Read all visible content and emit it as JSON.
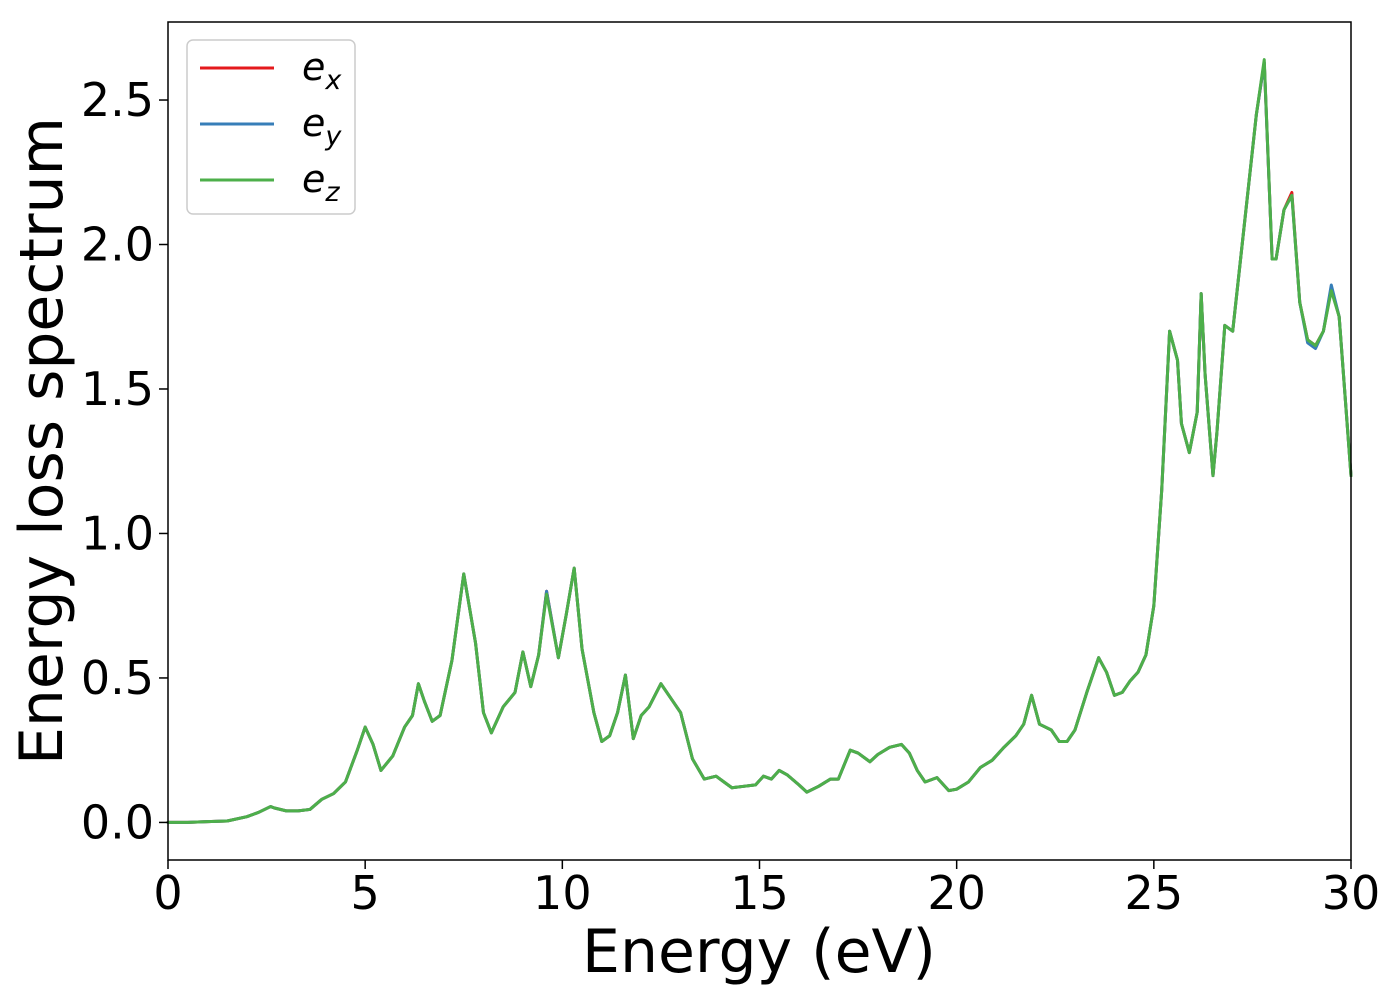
{
  "chart_data": {
    "type": "line",
    "title": "",
    "xlabel": "Energy (eV)",
    "ylabel": "Energy loss spectrum",
    "xlim": [
      0,
      30
    ],
    "ylim": [
      -0.13,
      2.77
    ],
    "xticks": [
      "0",
      "5",
      "10",
      "15",
      "20",
      "25",
      "30"
    ],
    "yticks": [
      "0.0",
      "0.5",
      "1.0",
      "1.5",
      "2.0",
      "2.5"
    ],
    "grid": false,
    "legend_position": "top-left",
    "legend": [
      {
        "base": "e",
        "sub": "x",
        "color": "#e41a1c"
      },
      {
        "base": "e",
        "sub": "y",
        "color": "#377eb8"
      },
      {
        "base": "e",
        "sub": "z",
        "color": "#4daf4a"
      }
    ],
    "x": [
      0,
      0.5,
      1.0,
      1.5,
      2.0,
      2.3,
      2.6,
      2.7,
      3.0,
      3.3,
      3.6,
      3.9,
      4.2,
      4.5,
      4.8,
      5.0,
      5.2,
      5.4,
      5.7,
      6.0,
      6.2,
      6.35,
      6.5,
      6.7,
      6.9,
      7.2,
      7.5,
      7.8,
      8.0,
      8.2,
      8.5,
      8.8,
      9.0,
      9.2,
      9.4,
      9.6,
      9.9,
      10.1,
      10.3,
      10.5,
      10.8,
      11.0,
      11.2,
      11.4,
      11.6,
      11.8,
      12.0,
      12.2,
      12.5,
      12.8,
      13.0,
      13.3,
      13.6,
      13.9,
      14.1,
      14.3,
      14.6,
      14.9,
      15.1,
      15.3,
      15.5,
      15.7,
      16.0,
      16.2,
      16.5,
      16.8,
      17.0,
      17.3,
      17.5,
      17.8,
      18.0,
      18.3,
      18.6,
      18.8,
      19.0,
      19.2,
      19.5,
      19.8,
      20.0,
      20.3,
      20.6,
      20.9,
      21.2,
      21.5,
      21.7,
      21.9,
      22.1,
      22.4,
      22.6,
      22.8,
      23.0,
      23.3,
      23.6,
      23.8,
      24.0,
      24.2,
      24.4,
      24.6,
      24.8,
      25.0,
      25.2,
      25.4,
      25.6,
      25.7,
      25.9,
      26.1,
      26.2,
      26.3,
      26.5,
      26.6,
      26.8,
      27.0,
      27.2,
      27.4,
      27.6,
      27.8,
      28.0,
      28.1,
      28.3,
      28.5,
      28.7,
      28.9,
      29.1,
      29.3,
      29.5,
      29.7,
      30.0
    ],
    "series": [
      {
        "values": [
          0,
          0.0,
          0.003,
          0.005,
          0.02,
          0.035,
          0.055,
          0.05,
          0.04,
          0.04,
          0.045,
          0.08,
          0.1,
          0.14,
          0.25,
          0.33,
          0.27,
          0.18,
          0.23,
          0.33,
          0.37,
          0.48,
          0.42,
          0.35,
          0.37,
          0.56,
          0.86,
          0.62,
          0.38,
          0.31,
          0.4,
          0.45,
          0.59,
          0.47,
          0.58,
          0.8,
          0.57,
          0.72,
          0.88,
          0.6,
          0.38,
          0.28,
          0.3,
          0.38,
          0.51,
          0.29,
          0.37,
          0.4,
          0.48,
          0.42,
          0.38,
          0.22,
          0.15,
          0.16,
          0.14,
          0.12,
          0.125,
          0.13,
          0.16,
          0.15,
          0.18,
          0.165,
          0.13,
          0.105,
          0.125,
          0.15,
          0.15,
          0.25,
          0.24,
          0.21,
          0.235,
          0.26,
          0.27,
          0.24,
          0.18,
          0.14,
          0.155,
          0.11,
          0.115,
          0.14,
          0.19,
          0.215,
          0.26,
          0.3,
          0.34,
          0.44,
          0.34,
          0.32,
          0.28,
          0.28,
          0.32,
          0.45,
          0.57,
          0.52,
          0.44,
          0.45,
          0.49,
          0.52,
          0.58,
          0.75,
          1.15,
          1.7,
          1.6,
          1.38,
          1.28,
          1.42,
          1.83,
          1.55,
          1.2,
          1.35,
          1.72,
          1.7,
          1.95,
          2.2,
          2.45,
          2.63,
          1.95,
          1.95,
          2.12,
          2.18,
          1.8,
          1.67,
          1.65,
          1.7,
          1.85,
          1.75,
          1.2
        ]
      },
      {
        "values": [
          0,
          0.0,
          0.003,
          0.005,
          0.02,
          0.035,
          0.055,
          0.05,
          0.04,
          0.04,
          0.045,
          0.08,
          0.1,
          0.14,
          0.25,
          0.33,
          0.27,
          0.18,
          0.23,
          0.33,
          0.37,
          0.48,
          0.42,
          0.35,
          0.37,
          0.56,
          0.86,
          0.62,
          0.38,
          0.31,
          0.4,
          0.45,
          0.59,
          0.47,
          0.58,
          0.8,
          0.57,
          0.72,
          0.88,
          0.6,
          0.38,
          0.28,
          0.3,
          0.38,
          0.51,
          0.29,
          0.37,
          0.4,
          0.48,
          0.42,
          0.38,
          0.22,
          0.15,
          0.16,
          0.14,
          0.12,
          0.125,
          0.13,
          0.16,
          0.15,
          0.18,
          0.165,
          0.13,
          0.105,
          0.125,
          0.15,
          0.15,
          0.25,
          0.24,
          0.21,
          0.235,
          0.26,
          0.27,
          0.24,
          0.18,
          0.14,
          0.155,
          0.11,
          0.115,
          0.14,
          0.19,
          0.215,
          0.26,
          0.3,
          0.34,
          0.44,
          0.34,
          0.32,
          0.28,
          0.28,
          0.32,
          0.45,
          0.57,
          0.52,
          0.44,
          0.45,
          0.49,
          0.52,
          0.58,
          0.75,
          1.15,
          1.7,
          1.6,
          1.38,
          1.28,
          1.42,
          1.83,
          1.55,
          1.2,
          1.35,
          1.72,
          1.7,
          1.95,
          2.2,
          2.45,
          2.63,
          1.95,
          1.95,
          2.12,
          2.17,
          1.8,
          1.66,
          1.64,
          1.7,
          1.86,
          1.75,
          1.2
        ]
      },
      {
        "values": [
          0,
          0.0,
          0.003,
          0.005,
          0.02,
          0.035,
          0.055,
          0.05,
          0.04,
          0.04,
          0.045,
          0.08,
          0.1,
          0.14,
          0.25,
          0.33,
          0.27,
          0.18,
          0.23,
          0.33,
          0.37,
          0.48,
          0.42,
          0.35,
          0.37,
          0.56,
          0.86,
          0.62,
          0.38,
          0.31,
          0.4,
          0.45,
          0.59,
          0.47,
          0.58,
          0.79,
          0.57,
          0.72,
          0.88,
          0.6,
          0.38,
          0.28,
          0.3,
          0.38,
          0.51,
          0.29,
          0.37,
          0.4,
          0.48,
          0.42,
          0.38,
          0.22,
          0.15,
          0.16,
          0.14,
          0.12,
          0.125,
          0.13,
          0.16,
          0.15,
          0.18,
          0.165,
          0.13,
          0.105,
          0.125,
          0.15,
          0.15,
          0.25,
          0.24,
          0.21,
          0.235,
          0.26,
          0.27,
          0.24,
          0.18,
          0.14,
          0.155,
          0.11,
          0.115,
          0.14,
          0.19,
          0.215,
          0.26,
          0.3,
          0.34,
          0.44,
          0.34,
          0.32,
          0.28,
          0.28,
          0.32,
          0.45,
          0.57,
          0.52,
          0.44,
          0.45,
          0.49,
          0.52,
          0.58,
          0.75,
          1.15,
          1.7,
          1.6,
          1.38,
          1.28,
          1.42,
          1.83,
          1.55,
          1.2,
          1.35,
          1.72,
          1.7,
          1.95,
          2.2,
          2.45,
          2.64,
          1.95,
          1.95,
          2.12,
          2.17,
          1.8,
          1.67,
          1.65,
          1.7,
          1.84,
          1.75,
          1.2
        ]
      }
    ]
  }
}
